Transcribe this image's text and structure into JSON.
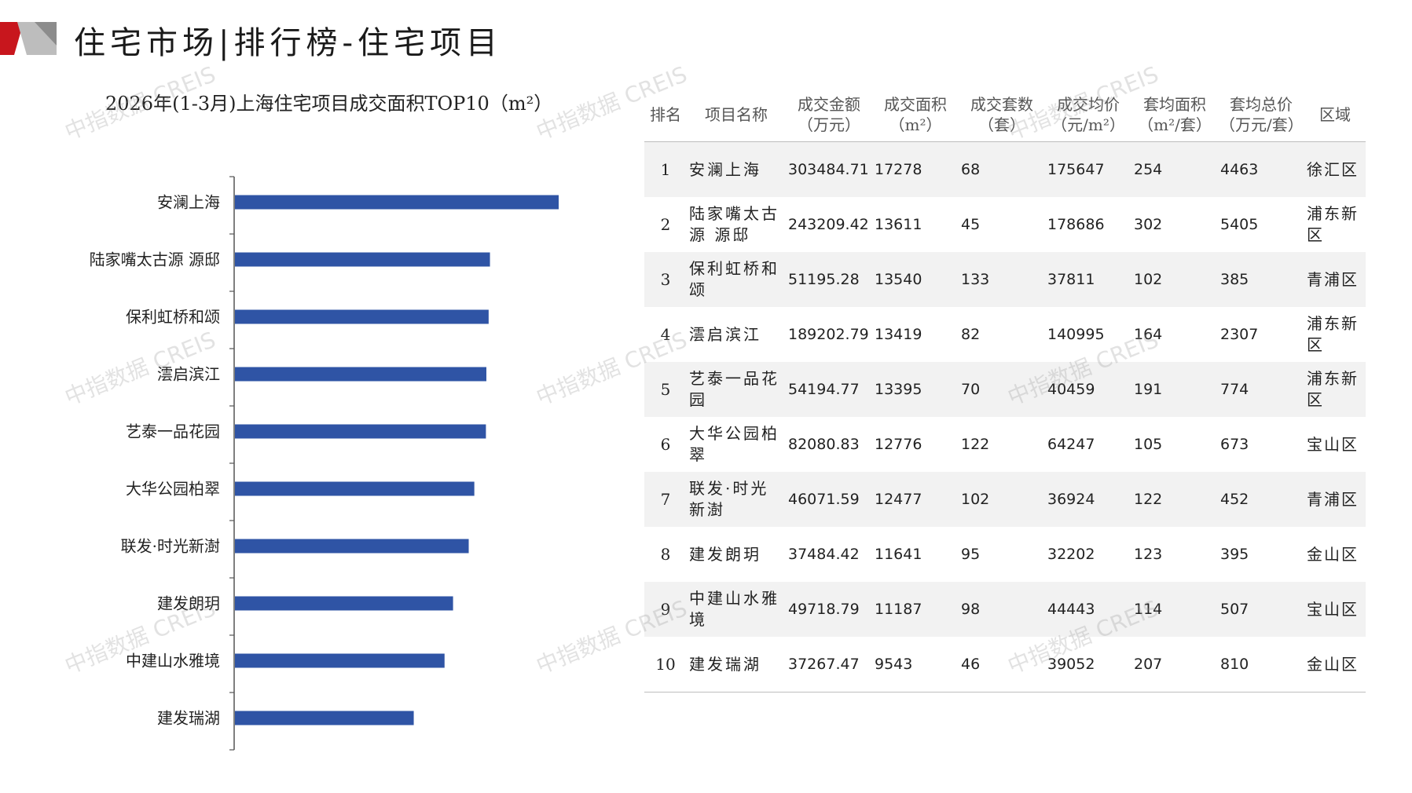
{
  "page": {
    "title": "住宅市场|排行榜-住宅项目"
  },
  "colors": {
    "bar": "#2f54a5",
    "logo_red": "#c8161d",
    "logo_grey": "#8c8c8c"
  },
  "watermark": "中指数据 CREIS",
  "chart_data": {
    "type": "bar",
    "orientation": "horizontal",
    "title": "2026年(1-3月)上海住宅项目成交面积TOP10（m²）",
    "categories": [
      "安澜上海",
      "陆家嘴太古源 源邸",
      "保利虹桥和颂",
      "澐启滨江",
      "艺泰一品花园",
      "大华公园柏翠",
      "联发·时光新澍",
      "建发朗玥",
      "中建山水雅境",
      "建发瑞湖"
    ],
    "values": [
      17278,
      13611,
      13540,
      13419,
      13395,
      12776,
      12477,
      11641,
      11187,
      9543
    ],
    "xlim": [
      0,
      20000
    ],
    "grid": false,
    "legend": "none"
  },
  "table": {
    "headers": [
      {
        "line1": "排名",
        "line2": ""
      },
      {
        "line1": "项目名称",
        "line2": ""
      },
      {
        "line1": "成交金额",
        "line2": "（万元）"
      },
      {
        "line1": "成交面积",
        "line2": "（m²）"
      },
      {
        "line1": "成交套数",
        "line2": "（套）"
      },
      {
        "line1": "成交均价",
        "line2": "（元/m²）"
      },
      {
        "line1": "套均面积",
        "line2": "（m²/套）"
      },
      {
        "line1": "套均总价",
        "line2": "（万元/套）"
      },
      {
        "line1": "区域",
        "line2": ""
      }
    ],
    "rows": [
      {
        "rank": "1",
        "name": "安澜上海",
        "amount": "303484.71",
        "area": "17278",
        "units": "68",
        "price": "175647",
        "avg_area": "254",
        "avg_total": "4463",
        "district": "徐汇区"
      },
      {
        "rank": "2",
        "name": "陆家嘴太古源 源邸",
        "amount": "243209.42",
        "area": "13611",
        "units": "45",
        "price": "178686",
        "avg_area": "302",
        "avg_total": "5405",
        "district": "浦东新区"
      },
      {
        "rank": "3",
        "name": "保利虹桥和颂",
        "amount": "51195.28",
        "area": "13540",
        "units": "133",
        "price": "37811",
        "avg_area": "102",
        "avg_total": "385",
        "district": "青浦区"
      },
      {
        "rank": "4",
        "name": "澐启滨江",
        "amount": "189202.79",
        "area": "13419",
        "units": "82",
        "price": "140995",
        "avg_area": "164",
        "avg_total": "2307",
        "district": "浦东新区"
      },
      {
        "rank": "5",
        "name": "艺泰一品花园",
        "amount": "54194.77",
        "area": "13395",
        "units": "70",
        "price": "40459",
        "avg_area": "191",
        "avg_total": "774",
        "district": "浦东新区"
      },
      {
        "rank": "6",
        "name": "大华公园柏翠",
        "amount": "82080.83",
        "area": "12776",
        "units": "122",
        "price": "64247",
        "avg_area": "105",
        "avg_total": "673",
        "district": "宝山区"
      },
      {
        "rank": "7",
        "name": "联发·时光新澍",
        "amount": "46071.59",
        "area": "12477",
        "units": "102",
        "price": "36924",
        "avg_area": "122",
        "avg_total": "452",
        "district": "青浦区"
      },
      {
        "rank": "8",
        "name": "建发朗玥",
        "amount": "37484.42",
        "area": "11641",
        "units": "95",
        "price": "32202",
        "avg_area": "123",
        "avg_total": "395",
        "district": "金山区"
      },
      {
        "rank": "9",
        "name": "中建山水雅境",
        "amount": "49718.79",
        "area": "11187",
        "units": "98",
        "price": "44443",
        "avg_area": "114",
        "avg_total": "507",
        "district": "宝山区"
      },
      {
        "rank": "10",
        "name": "建发瑞湖",
        "amount": "37267.47",
        "area": "9543",
        "units": "46",
        "price": "39052",
        "avg_area": "207",
        "avg_total": "810",
        "district": "金山区"
      }
    ]
  }
}
